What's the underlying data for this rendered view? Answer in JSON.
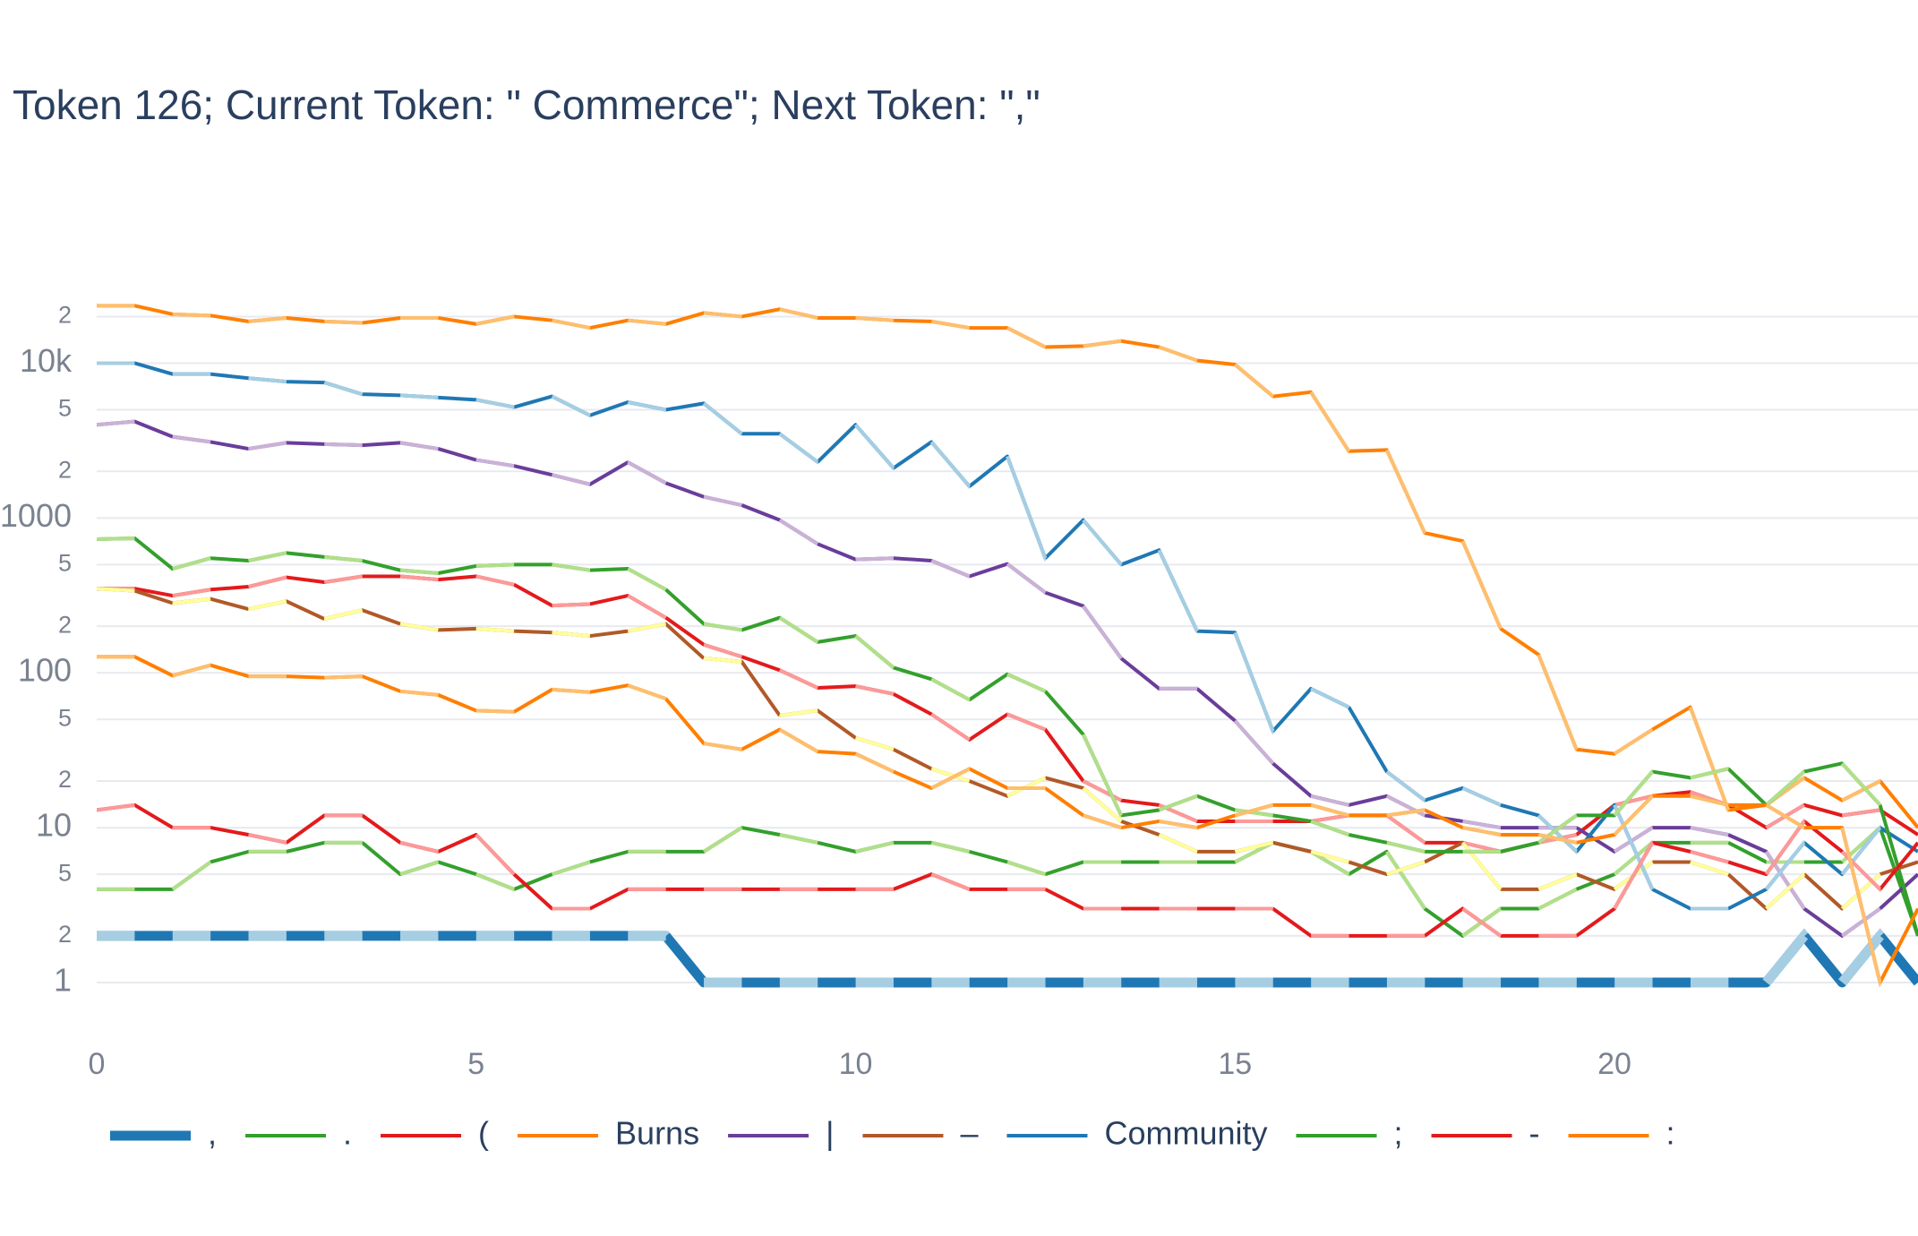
{
  "chart_data": {
    "type": "line",
    "title": "Token 126; Current Token: \" Commerce\"; Next Token: \",\"",
    "yscale": "log",
    "grid": true,
    "legend": "bottom",
    "xlim": [
      0,
      24
    ],
    "xticks": [
      0,
      5,
      10,
      15,
      20
    ],
    "ylim": [
      0.5,
      30000
    ],
    "yticks": [
      1,
      2,
      5,
      10,
      {
        "value": 20,
        "label": "2"
      },
      {
        "value": 50,
        "label": "5"
      },
      100,
      {
        "value": 200,
        "label": "2"
      },
      {
        "value": 500,
        "label": "5"
      },
      1000,
      {
        "value": 2000,
        "label": "2"
      },
      {
        "value": 5000,
        "label": "5"
      },
      {
        "value": 10000,
        "label": "10k"
      },
      {
        "value": 20000,
        "label": "2"
      }
    ],
    "x": [
      0,
      0.5,
      1,
      1.5,
      2,
      2.5,
      3,
      3.5,
      4,
      4.5,
      5,
      5.5,
      6,
      6.5,
      7,
      7.5,
      8,
      8.5,
      9,
      9.5,
      10,
      10.5,
      11,
      11.5,
      12,
      12.5,
      13,
      13.5,
      14,
      14.5,
      15,
      15.5,
      16,
      16.5,
      17,
      17.5,
      18,
      18.5,
      19,
      19.5,
      20,
      20.5,
      21,
      21.5,
      22,
      22.5,
      23,
      23.5,
      24
    ],
    "series": [
      {
        "name": ",",
        "color": "#1f78b4",
        "alt_color": "#a6cee3",
        "highlight": true,
        "values": [
          2,
          2,
          2,
          2,
          2,
          2,
          2,
          2,
          2,
          2,
          2,
          2,
          2,
          2,
          2,
          2,
          1,
          1,
          1,
          1,
          1,
          1,
          1,
          1,
          1,
          1,
          1,
          1,
          1,
          1,
          1,
          1,
          1,
          1,
          1,
          1,
          1,
          1,
          1,
          1,
          1,
          1,
          1,
          1,
          1,
          2,
          1,
          2,
          1
        ]
      },
      {
        "name": ".",
        "color": "#33a02c",
        "alt_color": "#b2df8a",
        "values": [
          4,
          4,
          4,
          6,
          7,
          7,
          8,
          8,
          5,
          6,
          5,
          4,
          5,
          6,
          7,
          7,
          7,
          10,
          9,
          8,
          7,
          8,
          8,
          7,
          6,
          5,
          6,
          6,
          6,
          6,
          6,
          8,
          7,
          5,
          7,
          3,
          2,
          3,
          3,
          4,
          5,
          8,
          8,
          8,
          6,
          6,
          6,
          10,
          2
        ]
      },
      {
        "name": "(",
        "color": "#e31a1c",
        "alt_color": "#fb9a99",
        "values": [
          350,
          350,
          315,
          345,
          360,
          414,
          385,
          420,
          420,
          400,
          420,
          371,
          272,
          278,
          315,
          227,
          152,
          127,
          104,
          80,
          82,
          73,
          54,
          37,
          54,
          43,
          20,
          15,
          14,
          11,
          11,
          11,
          11,
          12,
          12,
          8,
          8,
          7,
          8,
          9,
          14,
          16,
          17,
          14,
          10,
          14,
          12,
          13,
          9
        ]
      },
      {
        "name": "Burns",
        "color": "#ff7f00",
        "alt_color": "#fdbf6f",
        "values": [
          23500,
          23500,
          20700,
          20300,
          18600,
          19600,
          18600,
          18200,
          19600,
          19600,
          17900,
          20000,
          18900,
          16900,
          18900,
          17900,
          21100,
          20000,
          22300,
          19600,
          19600,
          18900,
          18600,
          16900,
          16900,
          12700,
          12900,
          13900,
          12700,
          10400,
          9800,
          6100,
          6500,
          2700,
          2750,
          800,
          710,
          193,
          131,
          32,
          30,
          43,
          60,
          13,
          14,
          21,
          15,
          20,
          10
        ]
      },
      {
        "name": "|",
        "color": "#6a3d9a",
        "alt_color": "#cab2d6",
        "values": [
          4000,
          4200,
          3350,
          3100,
          2800,
          3060,
          3000,
          2950,
          3060,
          2800,
          2370,
          2170,
          1900,
          1650,
          2290,
          1680,
          1370,
          1210,
          970,
          680,
          540,
          550,
          530,
          420,
          505,
          330,
          270,
          124,
          79,
          79,
          49,
          26,
          16,
          14,
          16,
          12,
          11,
          10,
          10,
          10,
          7,
          10,
          10,
          9,
          7,
          3,
          2,
          3,
          5
        ]
      },
      {
        "name": "–",
        "color": "#b15928",
        "alt_color": "#ffff99",
        "values": [
          350,
          339,
          282,
          300,
          258,
          290,
          223,
          254,
          207,
          189,
          193,
          186,
          182,
          173,
          186,
          207,
          124,
          118,
          53,
          57,
          38,
          32,
          24,
          20,
          16,
          21,
          18,
          11,
          9,
          7,
          7,
          8,
          7,
          6,
          5,
          6,
          8,
          4,
          4,
          5,
          4,
          6,
          6,
          5,
          3,
          5,
          3,
          5,
          6
        ]
      },
      {
        "name": "Community",
        "color": "#1f78b4",
        "alt_color": "#a6cee3",
        "values": [
          10000,
          10000,
          8500,
          8500,
          8000,
          7600,
          7500,
          6300,
          6200,
          6000,
          5800,
          5200,
          6100,
          4600,
          5600,
          5000,
          5500,
          3500,
          3500,
          2300,
          4000,
          2100,
          3100,
          1600,
          2500,
          550,
          970,
          500,
          620,
          186,
          182,
          42,
          79,
          60,
          23,
          15,
          18,
          14,
          12,
          7,
          14,
          4,
          3,
          3,
          4,
          8,
          5,
          10,
          7
        ]
      },
      {
        "name": ";",
        "color": "#33a02c",
        "alt_color": "#b2df8a",
        "values": [
          730,
          740,
          470,
          550,
          530,
          595,
          560,
          530,
          460,
          440,
          490,
          500,
          500,
          460,
          470,
          345,
          207,
          189,
          227,
          158,
          173,
          108,
          91,
          67,
          98,
          76,
          40,
          12,
          13,
          16,
          13,
          12,
          11,
          9,
          8,
          7,
          7,
          7,
          8,
          12,
          12,
          23,
          21,
          24,
          14,
          23,
          26,
          14,
          2
        ]
      },
      {
        "name": "-",
        "color": "#e31a1c",
        "alt_color": "#fb9a99",
        "values": [
          13,
          14,
          10,
          10,
          9,
          8,
          12,
          12,
          8,
          7,
          9,
          5,
          3,
          3,
          4,
          4,
          4,
          4,
          4,
          4,
          4,
          4,
          5,
          4,
          4,
          4,
          3,
          3,
          3,
          3,
          3,
          3,
          2,
          2,
          2,
          2,
          3,
          2,
          2,
          2,
          3,
          8,
          7,
          6,
          5,
          11,
          7,
          4,
          8
        ]
      },
      {
        "name": ":",
        "color": "#ff7f00",
        "alt_color": "#fdbf6f",
        "values": [
          127,
          127,
          96,
          112,
          95,
          95,
          93,
          95,
          76,
          72,
          57,
          56,
          78,
          75,
          83,
          68,
          35,
          32,
          43,
          31,
          30,
          23,
          18,
          24,
          18,
          18,
          12,
          10,
          11,
          10,
          12,
          14,
          14,
          12,
          12,
          13,
          10,
          9,
          9,
          8,
          9,
          16,
          16,
          14,
          14,
          10,
          10,
          1,
          3
        ]
      }
    ]
  }
}
